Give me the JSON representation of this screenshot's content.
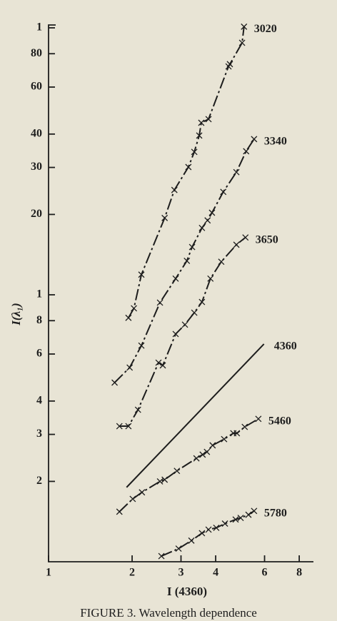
{
  "chart_data": {
    "type": "line",
    "log_x": true,
    "log_y": true,
    "xlabel": "I (4360)",
    "ylabel": "I(λ₁)",
    "caption": "FIGURE 3. Wavelength dependence",
    "xlim": [
      1,
      9
    ],
    "ylim": [
      1,
      100
    ],
    "xticks": [
      1,
      2,
      3,
      4,
      6,
      8
    ],
    "yticks": [
      2,
      3,
      4,
      6,
      8,
      {
        "value": 10,
        "label": "1"
      },
      20,
      30,
      40,
      60,
      80,
      {
        "value": 100,
        "label": "1"
      }
    ],
    "series": [
      {
        "name": "3020",
        "color": "#1d1d1d",
        "line": "dash",
        "marker": "x",
        "x": [
          1.94,
          2.03,
          2.16,
          2.62,
          2.84,
          3.19,
          3.35,
          3.49,
          3.55,
          3.77,
          4.45,
          4.5,
          4.98,
          5.06
        ],
        "values": [
          8.2,
          8.9,
          11.9,
          19.4,
          24.7,
          30.1,
          34.3,
          39.5,
          44.1,
          45.5,
          71.7,
          73.1,
          87.9,
          101
        ]
      },
      {
        "name": "3340",
        "color": "#1d1d1d",
        "line": "dash",
        "marker": "x",
        "x": [
          1.73,
          1.96,
          2.16,
          2.52,
          2.87,
          3.15,
          3.29,
          3.57,
          3.74,
          3.88,
          4.26,
          4.75,
          5.15,
          5.5
        ],
        "values": [
          4.69,
          5.34,
          6.45,
          9.35,
          11.5,
          13.4,
          15.1,
          17.8,
          19.0,
          20.3,
          24.3,
          28.8,
          34.5,
          38.3
        ]
      },
      {
        "name": "3650",
        "color": "#1d1d1d",
        "line": "dash",
        "marker": "x",
        "x": [
          1.8,
          1.94,
          2.1,
          2.49,
          2.58,
          2.87,
          3.1,
          3.35,
          3.57,
          3.83,
          4.19,
          4.75,
          5.12
        ],
        "values": [
          3.22,
          3.22,
          3.71,
          5.57,
          5.44,
          7.13,
          7.73,
          8.57,
          9.4,
          11.5,
          13.3,
          15.4,
          16.4
        ]
      },
      {
        "name": "4360",
        "color": "#1d1d1d",
        "line": "solid",
        "marker": "none",
        "x": [
          1.91,
          5.97
        ],
        "values": [
          1.9,
          6.54
        ]
      },
      {
        "name": "5460",
        "color": "#1d1d1d",
        "line": "dash",
        "marker": "x",
        "x": [
          1.8,
          2.01,
          2.17,
          2.52,
          2.62,
          2.9,
          3.41,
          3.59,
          3.72,
          3.9,
          4.29,
          4.63,
          4.77,
          5.09,
          5.7
        ],
        "values": [
          1.54,
          1.72,
          1.82,
          2.0,
          2.03,
          2.19,
          2.44,
          2.52,
          2.58,
          2.73,
          2.88,
          3.03,
          3.03,
          3.2,
          3.43
        ]
      },
      {
        "name": "5780",
        "color": "#1d1d1d",
        "line": "dash",
        "marker": "x",
        "x": [
          2.55,
          2.94,
          3.27,
          3.57,
          3.77,
          4.02,
          4.32,
          4.72,
          4.92,
          5.25,
          5.5
        ],
        "values": [
          1.05,
          1.12,
          1.2,
          1.28,
          1.32,
          1.34,
          1.39,
          1.44,
          1.46,
          1.5,
          1.55
        ]
      }
    ]
  }
}
